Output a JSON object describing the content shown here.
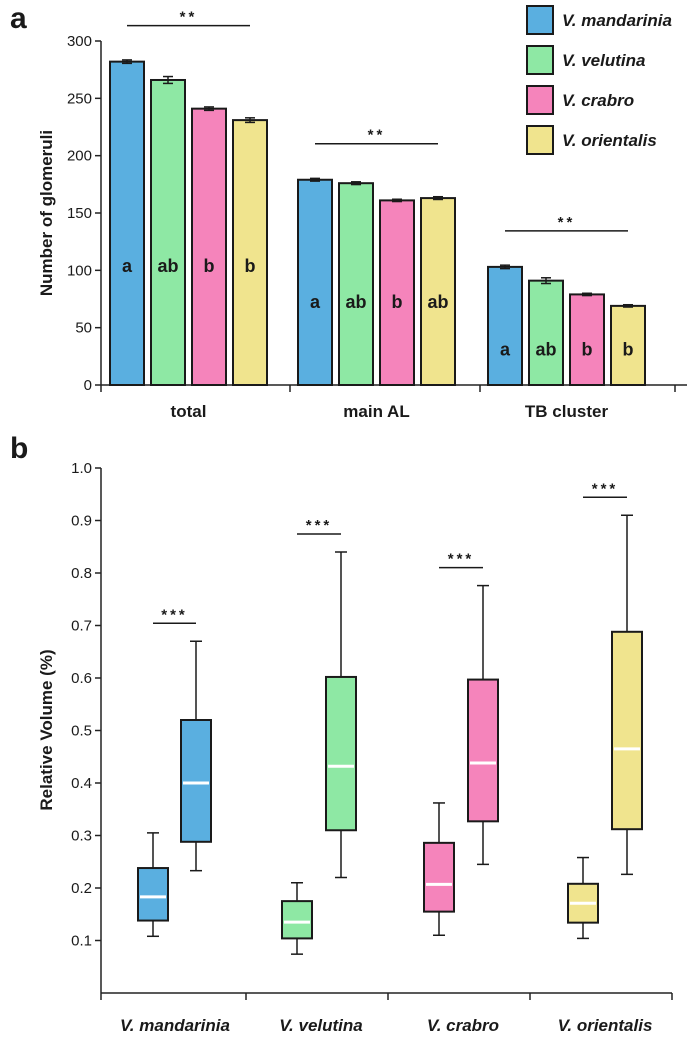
{
  "panels": {
    "a_label": "a",
    "b_label": "b"
  },
  "chart_data": [
    {
      "type": "bar",
      "panel": "a",
      "ylabel": "Number of glomeruli",
      "ylim": [
        0,
        300
      ],
      "yticks": [
        "0",
        "50",
        "100",
        "150",
        "200",
        "250",
        "300"
      ],
      "categories": [
        "total",
        "main AL",
        "TB cluster"
      ],
      "legend_position": "top-right",
      "series": [
        {
          "name": "V. mandarinia",
          "color": "#5aafe0",
          "values": [
            282,
            179,
            103
          ],
          "errors": [
            1.5,
            1.2,
            1.5
          ],
          "letters": [
            "a",
            "a",
            "a"
          ]
        },
        {
          "name": "V. velutina",
          "color": "#8ee8a4",
          "values": [
            266,
            176,
            91
          ],
          "errors": [
            3,
            1.2,
            2.5
          ],
          "letters": [
            "ab",
            "ab",
            "ab"
          ]
        },
        {
          "name": "V. crabro",
          "color": "#f584bb",
          "values": [
            241,
            161,
            79
          ],
          "errors": [
            1.5,
            1,
            1
          ],
          "letters": [
            "b",
            "b",
            "b"
          ]
        },
        {
          "name": "V. orientalis",
          "color": "#f0e48e",
          "values": [
            231,
            163,
            69
          ],
          "errors": [
            2,
            1.2,
            1
          ],
          "letters": [
            "b",
            "ab",
            "b"
          ]
        }
      ],
      "significance": [
        "**",
        "**",
        "**"
      ]
    },
    {
      "type": "box",
      "panel": "b",
      "ylabel": "Relative Volume (%)",
      "ylim": [
        0,
        1.0
      ],
      "yticks": [
        "0.1",
        "0.2",
        "0.3",
        "0.4",
        "0.5",
        "0.6",
        "0.7",
        "0.8",
        "0.9",
        "1.0"
      ],
      "categories": [
        "V. mandarinia",
        "V. velutina",
        "V. crabro",
        "V. orientalis"
      ],
      "colors": [
        "#5aafe0",
        "#8ee8a4",
        "#f584bb",
        "#f0e48e"
      ],
      "boxes": [
        [
          {
            "min": 0.108,
            "q1": 0.138,
            "median": 0.183,
            "q3": 0.238,
            "max": 0.305
          },
          {
            "min": 0.233,
            "q1": 0.288,
            "median": 0.4,
            "q3": 0.52,
            "max": 0.67
          }
        ],
        [
          {
            "min": 0.074,
            "q1": 0.104,
            "median": 0.135,
            "q3": 0.175,
            "max": 0.21
          },
          {
            "min": 0.22,
            "q1": 0.31,
            "median": 0.432,
            "q3": 0.602,
            "max": 0.84
          }
        ],
        [
          {
            "min": 0.11,
            "q1": 0.155,
            "median": 0.207,
            "q3": 0.286,
            "max": 0.362
          },
          {
            "min": 0.245,
            "q1": 0.327,
            "median": 0.438,
            "q3": 0.597,
            "max": 0.776
          }
        ],
        [
          {
            "min": 0.104,
            "q1": 0.134,
            "median": 0.171,
            "q3": 0.208,
            "max": 0.258
          },
          {
            "min": 0.226,
            "q1": 0.312,
            "median": 0.465,
            "q3": 0.688,
            "max": 0.91
          }
        ]
      ],
      "significance": [
        "***",
        "***",
        "***",
        "***"
      ]
    }
  ]
}
